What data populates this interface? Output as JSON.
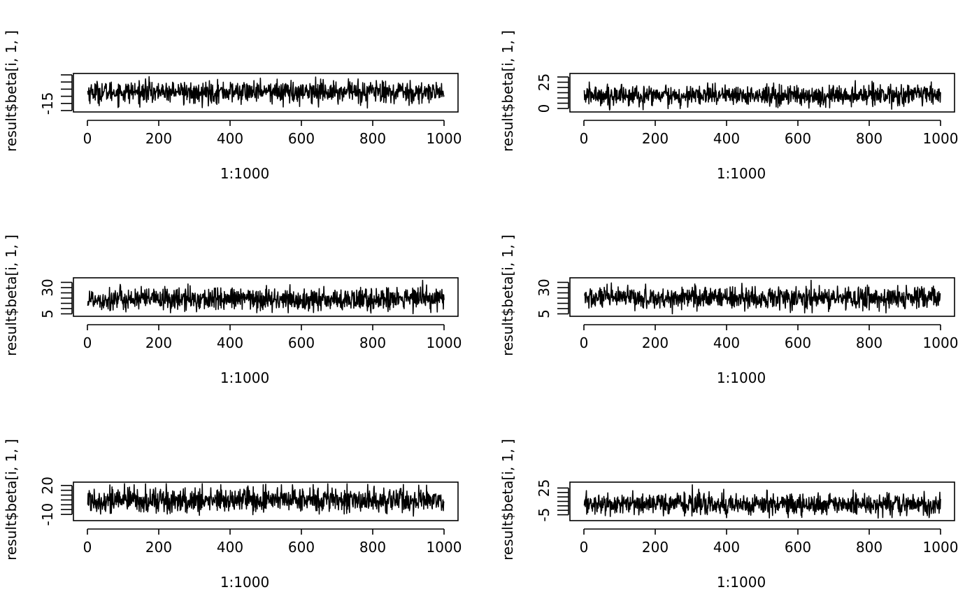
{
  "chart_data": [
    {
      "type": "line",
      "xlabel": "1:1000",
      "ylabel": "result$beta[i, 1, ]",
      "xlim": [
        0,
        1000
      ],
      "xticks": [
        0,
        200,
        400,
        600,
        800,
        1000
      ],
      "ylim": [
        -20,
        5
      ],
      "yticks": [
        -20,
        -15,
        -10,
        -5,
        0,
        5
      ],
      "ytick_labels_shown": [
        "-15"
      ],
      "series": [
        {
          "n": 1000,
          "mean": -7,
          "sd": 3.8,
          "min": -19,
          "max": 4
        }
      ]
    },
    {
      "type": "line",
      "xlabel": "1:1000",
      "ylabel": "result$beta[i, 1, ]",
      "xlim": [
        0,
        1000
      ],
      "xticks": [
        0,
        200,
        400,
        600,
        800,
        1000
      ],
      "ylim": [
        -2,
        32
      ],
      "yticks": [
        0,
        5,
        10,
        15,
        20,
        25,
        30
      ],
      "ytick_labels_shown": [
        "0",
        "25"
      ],
      "series": [
        {
          "n": 1000,
          "mean": 12.5,
          "sd": 5,
          "min": -2,
          "max": 30
        }
      ]
    },
    {
      "type": "line",
      "xlabel": "1:1000",
      "ylabel": "result$beta[i, 1, ]",
      "xlim": [
        0,
        1000
      ],
      "xticks": [
        0,
        200,
        400,
        600,
        800,
        1000
      ],
      "ylim": [
        4,
        38
      ],
      "yticks": [
        5,
        10,
        15,
        20,
        25,
        30,
        35
      ],
      "ytick_labels_shown": [
        "5",
        "30"
      ],
      "series": [
        {
          "n": 1000,
          "mean": 19,
          "sd": 5.5,
          "min": 5,
          "max": 37
        }
      ]
    },
    {
      "type": "line",
      "xlabel": "1:1000",
      "ylabel": "result$beta[i, 1, ]",
      "xlim": [
        0,
        1000
      ],
      "xticks": [
        0,
        200,
        400,
        600,
        800,
        1000
      ],
      "ylim": [
        4,
        38
      ],
      "yticks": [
        5,
        10,
        15,
        20,
        25,
        30,
        35
      ],
      "ytick_labels_shown": [
        "5",
        "30"
      ],
      "series": [
        {
          "n": 1000,
          "mean": 20,
          "sd": 5.2,
          "min": 5,
          "max": 37
        }
      ]
    },
    {
      "type": "line",
      "xlabel": "1:1000",
      "ylabel": "result$beta[i, 1, ]",
      "xlim": [
        0,
        1000
      ],
      "xticks": [
        0,
        200,
        400,
        600,
        800,
        1000
      ],
      "ylim": [
        -15,
        22
      ],
      "yticks": [
        -10,
        -5,
        0,
        5,
        10,
        15,
        20
      ],
      "ytick_labels_shown": [
        "-10",
        "20"
      ],
      "series": [
        {
          "n": 1000,
          "mean": 5,
          "sd": 6.5,
          "min": -12,
          "max": 22
        }
      ]
    },
    {
      "type": "line",
      "xlabel": "1:1000",
      "ylabel": "result$beta[i, 1, ]",
      "xlim": [
        0,
        1000
      ],
      "xticks": [
        0,
        200,
        400,
        600,
        800,
        1000
      ],
      "ylim": [
        -10,
        30
      ],
      "yticks": [
        -5,
        0,
        5,
        10,
        15,
        20,
        25
      ],
      "ytick_labels_shown": [
        "-5",
        "25"
      ],
      "series": [
        {
          "n": 1000,
          "mean": 7,
          "sd": 6,
          "min": -9,
          "max": 30
        }
      ]
    }
  ]
}
